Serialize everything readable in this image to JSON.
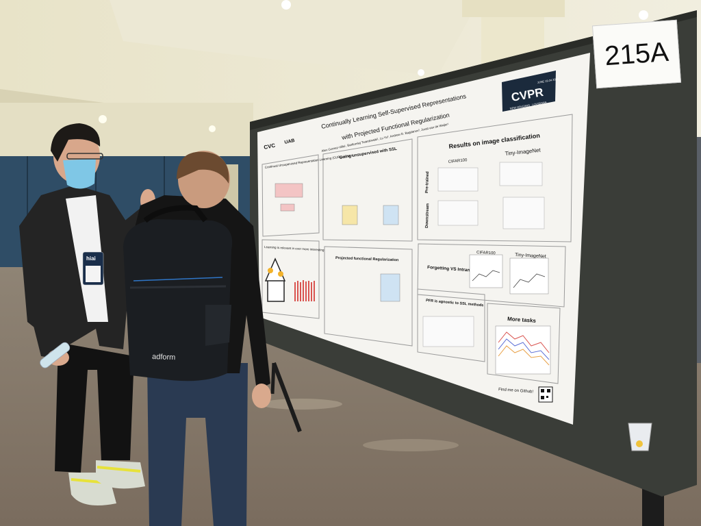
{
  "room_number": "215A",
  "poster": {
    "title_line1": "Continually Learning Self-Supervised Representations",
    "title_line2": "with Projected Functional Regularization",
    "authors": "Alex Gomez-Villa¹, Bartlomiej Twardowski¹, Lu Yu², Andrew D. Bagdanov³, Joost van de Weijer¹",
    "logo_left": "CVC",
    "logo_uab": "UAB",
    "conference_logo": {
      "name": "CVPR",
      "dates": "JUNE 19-24 2022",
      "location": "NEW ORLEANS · LOUISIANA"
    },
    "sections": {
      "curl": "Continual Unsupervised Representation Learning (CURL) is hard",
      "going_unsupervised": "Going unsupervised with SSL",
      "results": "Results on image classification",
      "cifar100": "CIFAR100",
      "tiny_imagenet": "Tiny-ImageNet",
      "pretrained": "Pre-trained",
      "downstream": "Downstream",
      "learning_relevant": "Learning is relevant in ever more interesting",
      "pfr": "Projected functional Regularization",
      "forgetting": "Forgetting VS Intransigence",
      "agnostic": "PFR is agnostic to SSL methods",
      "more_tasks": "More tasks",
      "github": "Find me on Github!"
    }
  },
  "badge_text": "hiai",
  "backpack_text": "adform"
}
